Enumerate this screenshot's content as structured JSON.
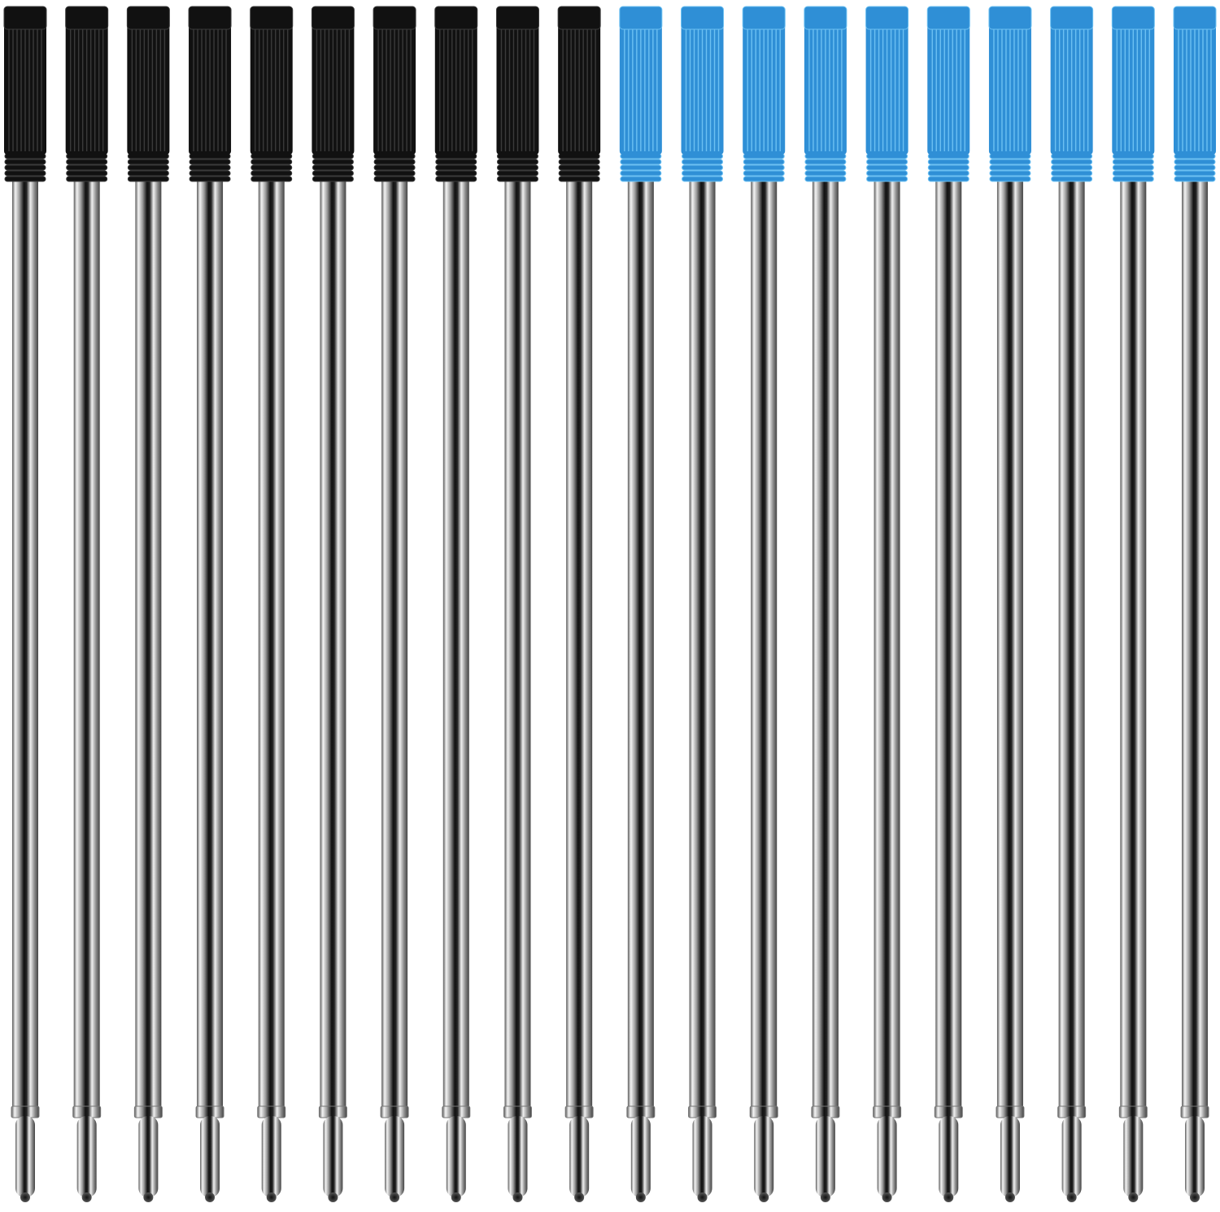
{
  "product_image": {
    "refill_groups": [
      {
        "cap_color_name": "black",
        "count": 10,
        "cap_color": "#111111",
        "cap_highlight": "#3a3a3a"
      },
      {
        "cap_color_name": "blue",
        "count": 10,
        "cap_color": "#2f8fd6",
        "cap_highlight": "#6cc0f2"
      }
    ],
    "tube_color": "#c8c8c8",
    "background_color": "#ffffff"
  }
}
